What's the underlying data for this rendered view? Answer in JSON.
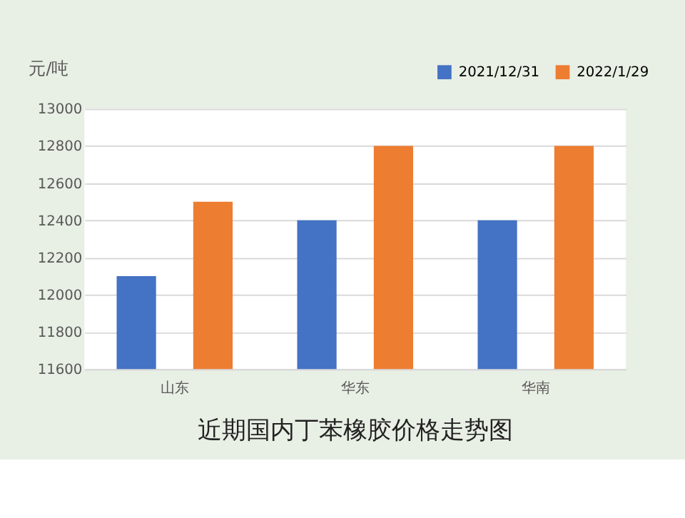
{
  "chart_data": {
    "type": "bar",
    "title": "近期国内丁苯橡胶价格走势图",
    "ylabel": "元/吨",
    "categories": [
      "山东",
      "华东",
      "华南"
    ],
    "series": [
      {
        "name": "2021/12/31",
        "color": "#4472c4",
        "values": [
          12100,
          12400,
          12400
        ]
      },
      {
        "name": "2022/1/29",
        "color": "#ed7d31",
        "values": [
          12500,
          12800,
          12800
        ]
      }
    ],
    "ylim": [
      11600,
      13000
    ],
    "yticks": [
      11600,
      11800,
      12000,
      12200,
      12400,
      12600,
      12800,
      13000
    ],
    "grid": "y",
    "legend": "top right"
  }
}
